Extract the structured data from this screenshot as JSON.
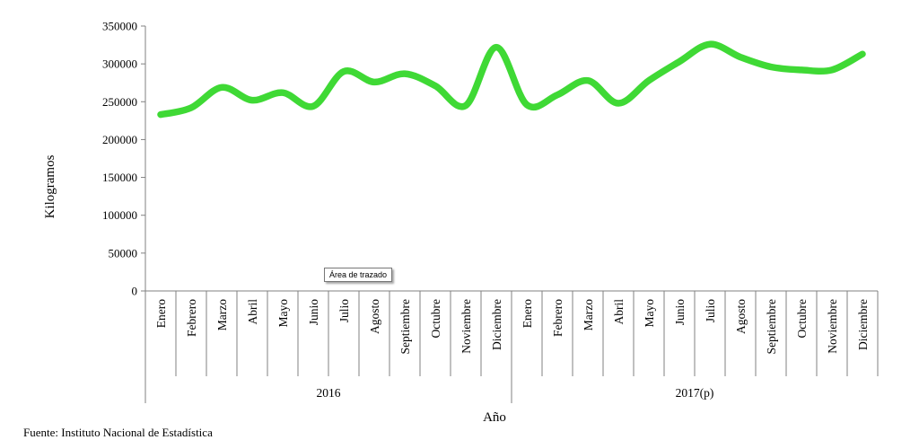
{
  "chart_data": {
    "type": "line",
    "title": "",
    "xlabel": "Año",
    "ylabel": "Kilogramos",
    "ylim": [
      0,
      350000
    ],
    "yticks": [
      0,
      50000,
      100000,
      150000,
      200000,
      250000,
      300000,
      350000
    ],
    "ytick_labels": [
      "0",
      "50000",
      "100000",
      "150000",
      "200000",
      "250000",
      "300000",
      "350000"
    ],
    "groups": [
      {
        "label": "2016",
        "months": [
          "Enero",
          "Febrero",
          "Marzo",
          "Abril",
          "Mayo",
          "Junio",
          "Julio",
          "Agosto",
          "Septiembre",
          "Octubre",
          "Noviembre",
          "Diciembre"
        ]
      },
      {
        "label": "2017(p)",
        "months": [
          "Enero",
          "Febrero",
          "Marzo",
          "Abril",
          "Mayo",
          "Junio",
          "Julio",
          "Agosto",
          "Septiembre",
          "Octubre",
          "Noviembre",
          "Diciembre"
        ]
      }
    ],
    "series": [
      {
        "values": [
          233000,
          242000,
          269000,
          252000,
          262000,
          244000,
          290000,
          276000,
          287000,
          271000,
          245000,
          322000,
          246000,
          259000,
          278000,
          248000,
          278000,
          303000,
          326000,
          309000,
          296000,
          292000,
          292000,
          313000
        ],
        "color": "#3fd935"
      }
    ],
    "grid": false,
    "legend": "none"
  },
  "tooltip": "Área de trazado",
  "source_note": "Fuente: Instituto Nacional de Estadística"
}
